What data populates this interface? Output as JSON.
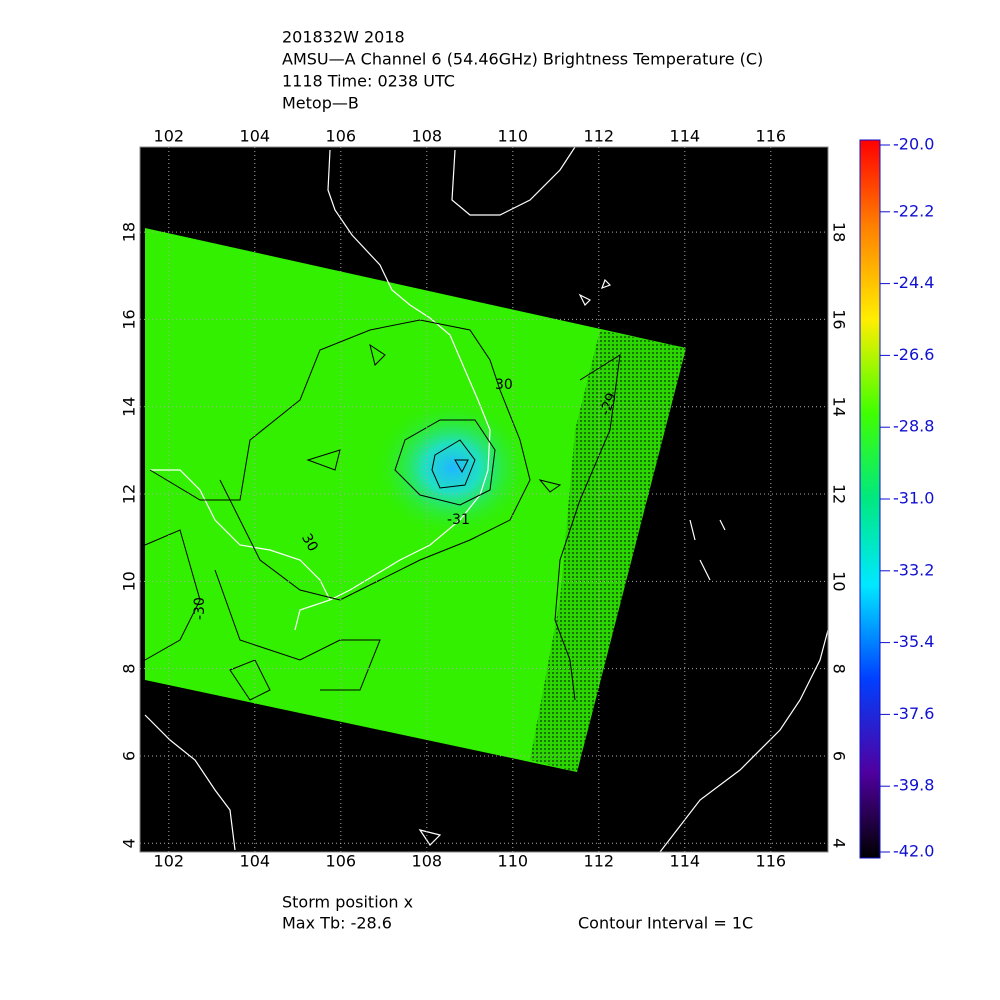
{
  "title_lines": [
    "201832W 2018",
    "AMSU—A Channel 6 (54.46GHz) Brightness Temperature (C)",
    "1118 Time: 0238 UTC",
    "Metop—B"
  ],
  "map": {
    "lon_range": [
      101.33,
      117.33
    ],
    "lat_range": [
      3.8,
      19.95
    ],
    "lon_ticks": [
      102,
      104,
      106,
      108,
      110,
      112,
      114,
      116
    ],
    "lat_ticks": [
      4,
      6,
      8,
      10,
      12,
      14,
      16,
      18
    ],
    "contour_labels": [
      "30",
      "-31",
      "-29",
      "-30",
      "30"
    ]
  },
  "colorbar": {
    "range": [
      -42,
      -20
    ],
    "ticks": [
      {
        "value": -20,
        "label": "-20.0"
      },
      {
        "value": -22.2,
        "label": "-22.2"
      },
      {
        "value": -24.4,
        "label": "-24.4"
      },
      {
        "value": -26.6,
        "label": "-26.6"
      },
      {
        "value": -28.8,
        "label": "-28.8"
      },
      {
        "value": -31,
        "label": "-31.0"
      },
      {
        "value": -33.2,
        "label": "-33.2"
      },
      {
        "value": -35.4,
        "label": "-35.4"
      },
      {
        "value": -37.6,
        "label": "-37.6"
      },
      {
        "value": -39.8,
        "label": "-39.8"
      },
      {
        "value": -42,
        "label": "-42.0"
      }
    ]
  },
  "footer": {
    "storm": "Storm position x",
    "max_tb": "Max Tb: -28.6",
    "contour_interval": "Contour Interval = 1C"
  }
}
